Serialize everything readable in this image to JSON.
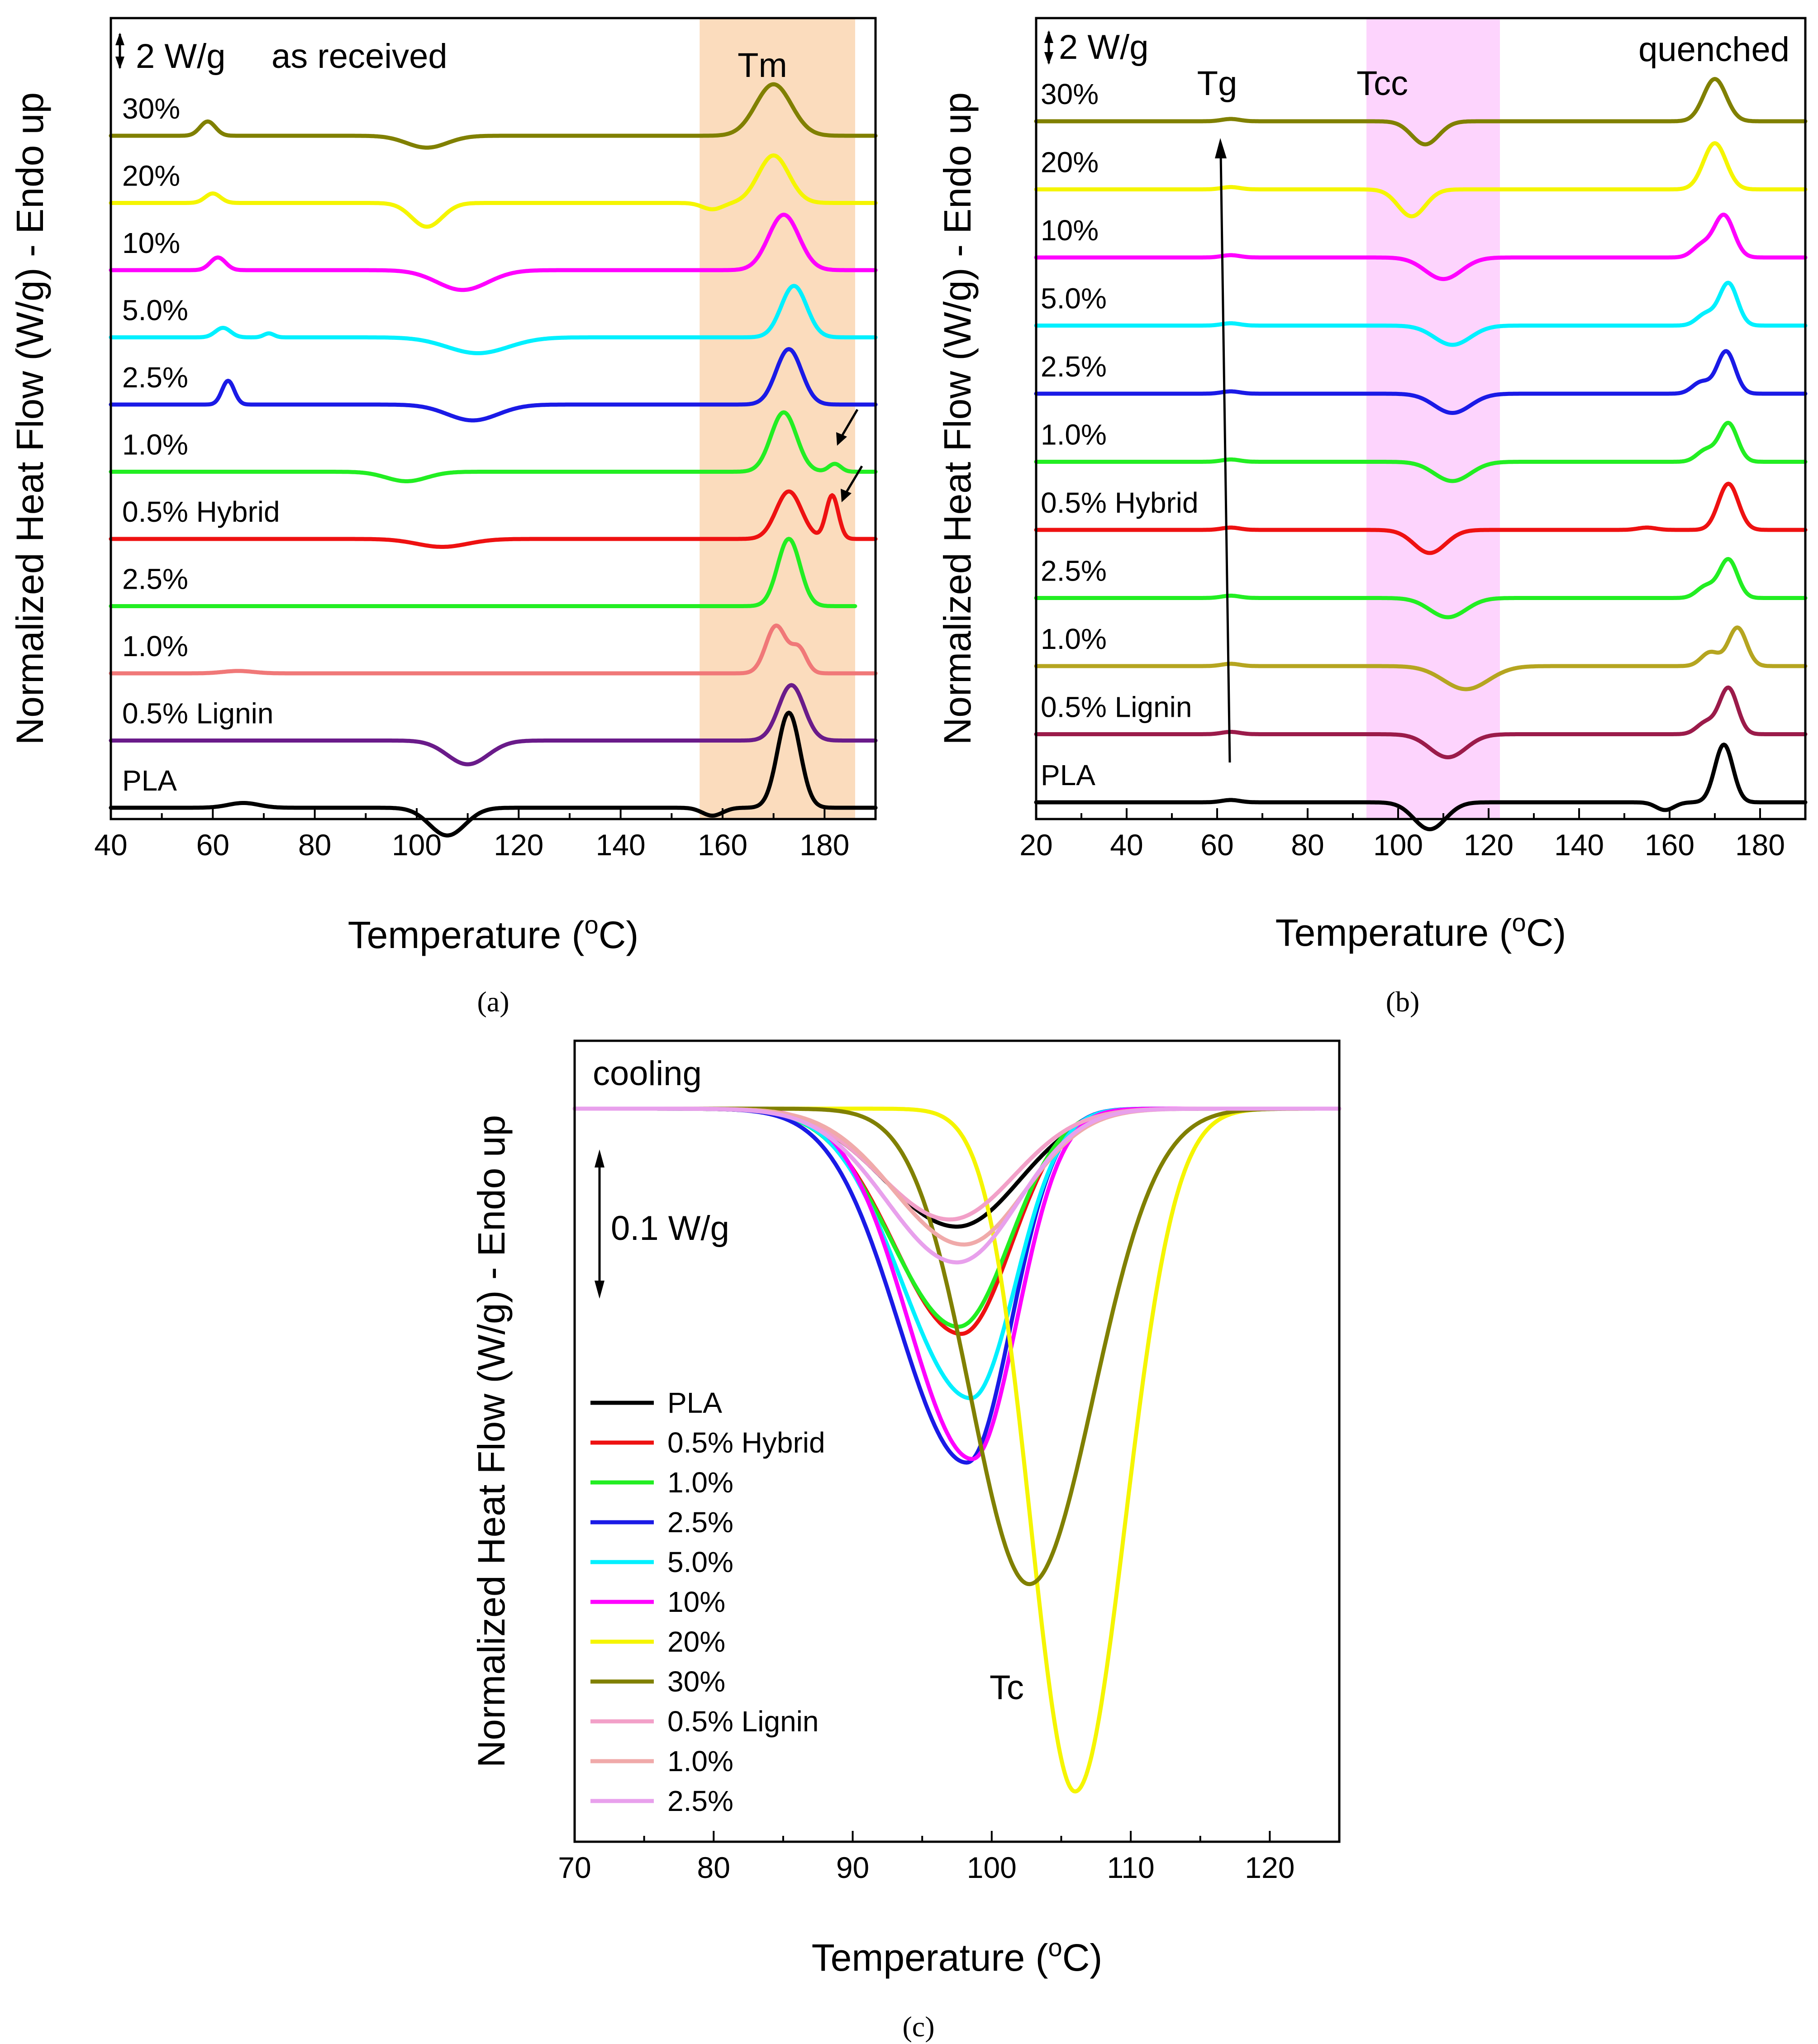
{
  "chart_data": [
    {
      "id": "a",
      "type": "line",
      "caption": "(a)",
      "title": "as received",
      "scale_bar_label": "2 W/g",
      "xlabel": "Temperature (",
      "xlabel_sup": "o",
      "xlabel_tail": "C)",
      "ylabel": "Normalized Heat Flow (W/g) - Endo up",
      "xlim": [
        40,
        190
      ],
      "xticks": [
        "40",
        "60",
        "80",
        "100",
        "120",
        "140",
        "160",
        "180"
      ],
      "highlight": {
        "label": "Tm",
        "range": [
          155.5,
          186
        ],
        "color": "#fbdcbd"
      },
      "series": [
        {
          "label": "30%",
          "color": "#808000",
          "baseline": 0,
          "features": [
            [
              59,
              0.18,
              1.5
            ],
            [
              102,
              -0.15,
              4
            ],
            [
              170,
              0.65,
              3.5
            ]
          ],
          "end": 190
        },
        {
          "label": "20%",
          "color": "#f5f500",
          "baseline": 1,
          "features": [
            [
              60,
              0.12,
              1.5
            ],
            [
              102,
              -0.3,
              3
            ],
            [
              170,
              0.6,
              3
            ],
            [
              158,
              -0.08,
              2
            ]
          ],
          "end": 190
        },
        {
          "label": "10%",
          "color": "#ff00ff",
          "baseline": 2,
          "features": [
            [
              61,
              0.16,
              1.5
            ],
            [
              109,
              -0.25,
              5
            ],
            [
              172,
              0.7,
              3
            ]
          ],
          "end": 190
        },
        {
          "label": "5.0%",
          "color": "#00f0ff",
          "baseline": 3,
          "features": [
            [
              62,
              0.12,
              1.5
            ],
            [
              71,
              0.05,
              1
            ],
            [
              112,
              -0.2,
              6
            ],
            [
              174,
              0.65,
              2.5
            ]
          ],
          "end": 190
        },
        {
          "label": "2.5%",
          "color": "#1a1ae6",
          "baseline": 4,
          "features": [
            [
              63,
              0.3,
              1.2
            ],
            [
              111,
              -0.2,
              5
            ],
            [
              173,
              0.7,
              2.5
            ]
          ],
          "end": 190
        },
        {
          "label": "1.0%",
          "color": "#22ee22",
          "baseline": 5,
          "features": [
            [
              98,
              -0.12,
              4
            ],
            [
              172,
              0.75,
              2.5
            ],
            [
              182,
              0.1,
              1.2
            ]
          ],
          "end": 190
        },
        {
          "label": "0.5% Hybrid",
          "color": "#ee1111",
          "baseline": 6,
          "features": [
            [
              105,
              -0.1,
              5
            ],
            [
              173,
              0.6,
              2.5
            ],
            [
              181.5,
              0.55,
              1.2
            ]
          ],
          "end": 190
        },
        {
          "label": "2.5%",
          "color": "#22ee22",
          "baseline": 7,
          "features": [
            [
              173,
              0.85,
              2.2
            ]
          ],
          "end": 186
        },
        {
          "label": "1.0%",
          "color": "#f07878",
          "baseline": 8,
          "features": [
            [
              65,
              0.03,
              3
            ],
            [
              170.5,
              0.6,
              2
            ],
            [
              175,
              0.3,
              1.5
            ]
          ],
          "end": 190
        },
        {
          "label": "0.5% Lignin",
          "color": "#6a1b8a",
          "baseline": 9,
          "features": [
            [
              110,
              -0.3,
              4
            ],
            [
              173.5,
              0.7,
              2.5
            ]
          ],
          "end": 190
        },
        {
          "label": "PLA",
          "color": "#000000",
          "baseline": 10,
          "features": [
            [
              66,
              0.06,
              3
            ],
            [
              106,
              -0.35,
              3.5
            ],
            [
              158,
              -0.1,
              2
            ],
            [
              173,
              1.2,
              2.2
            ]
          ],
          "end": 190
        }
      ],
      "arrows": 2
    },
    {
      "id": "b",
      "type": "line",
      "caption": "(b)",
      "title": "quenched",
      "scale_bar_label": "2 W/g",
      "xlabel": "Temperature (",
      "xlabel_sup": "o",
      "xlabel_tail": "C)",
      "ylabel": "Normalized Heat Flow (W/g) - Endo up",
      "xlim": [
        20,
        190
      ],
      "xticks": [
        "20",
        "40",
        "60",
        "80",
        "100",
        "120",
        "140",
        "160",
        "180"
      ],
      "highlight": {
        "label": "Tcc",
        "range": [
          93,
          122.5
        ],
        "color": "#fdd4fd"
      },
      "tg_label": "Tg",
      "series": [
        {
          "label": "30%",
          "color": "#808000",
          "baseline": 0,
          "features": [
            [
              63,
              0.03,
              2
            ],
            [
              106,
              -0.3,
              3
            ],
            [
              170,
              0.55,
              2.5
            ]
          ],
          "end": 190
        },
        {
          "label": "20%",
          "color": "#f5f500",
          "baseline": 1,
          "features": [
            [
              63,
              0.03,
              2
            ],
            [
              103,
              -0.35,
              3
            ],
            [
              170,
              0.6,
              2.5
            ]
          ],
          "end": 190
        },
        {
          "label": "10%",
          "color": "#ff00ff",
          "baseline": 2,
          "features": [
            [
              63,
              0.03,
              2
            ],
            [
              110,
              -0.28,
              4
            ],
            [
              167,
              0.15,
              2
            ],
            [
              172,
              0.55,
              2.2
            ]
          ],
          "end": 190
        },
        {
          "label": "5.0%",
          "color": "#00f0ff",
          "baseline": 3,
          "features": [
            [
              63,
              0.03,
              2
            ],
            [
              112,
              -0.25,
              4
            ],
            [
              168,
              0.15,
              2
            ],
            [
              173,
              0.55,
              2
            ]
          ],
          "end": 190
        },
        {
          "label": "2.5%",
          "color": "#1a1ae6",
          "baseline": 4,
          "features": [
            [
              63,
              0.03,
              2
            ],
            [
              112,
              -0.25,
              4
            ],
            [
              167,
              0.15,
              2
            ],
            [
              172.5,
              0.55,
              2
            ]
          ],
          "end": 190
        },
        {
          "label": "1.0%",
          "color": "#22ee22",
          "baseline": 5,
          "features": [
            [
              63,
              0.03,
              2
            ],
            [
              112,
              -0.25,
              4
            ],
            [
              168,
              0.15,
              2
            ],
            [
              173,
              0.5,
              2
            ]
          ],
          "end": 190
        },
        {
          "label": "0.5% Hybrid",
          "color": "#ee1111",
          "baseline": 6,
          "features": [
            [
              63,
              0.03,
              2
            ],
            [
              107,
              -0.3,
              3.5
            ],
            [
              155,
              0.03,
              2
            ],
            [
              173,
              0.6,
              2.2
            ]
          ],
          "end": 190
        },
        {
          "label": "2.5%",
          "color": "#22ee22",
          "baseline": 7,
          "features": [
            [
              63,
              0.03,
              2
            ],
            [
              111,
              -0.25,
              4
            ],
            [
              168,
              0.15,
              2
            ],
            [
              173,
              0.5,
              2
            ]
          ],
          "end": 190
        },
        {
          "label": "1.0%",
          "color": "#b5a520",
          "baseline": 8,
          "features": [
            [
              63,
              0.03,
              2
            ],
            [
              115,
              -0.3,
              5
            ],
            [
              169,
              0.18,
              2
            ],
            [
              175,
              0.5,
              2
            ]
          ],
          "end": 190
        },
        {
          "label": "0.5% Lignin",
          "color": "#9b1b4a",
          "baseline": 9,
          "features": [
            [
              63,
              0.03,
              2
            ],
            [
              111,
              -0.3,
              4
            ],
            [
              168,
              0.15,
              2
            ],
            [
              173,
              0.6,
              2
            ]
          ],
          "end": 190
        },
        {
          "label": "PLA",
          "color": "#000000",
          "baseline": 10,
          "features": [
            [
              63,
              0.03,
              2
            ],
            [
              107,
              -0.35,
              3.5
            ],
            [
              159,
              -0.1,
              2
            ],
            [
              172,
              0.75,
              2
            ]
          ],
          "end": 190
        }
      ]
    },
    {
      "id": "c",
      "type": "line",
      "caption": "(c)",
      "title": "cooling",
      "scale_bar_label": "0.1 W/g",
      "peak_label": "Tc",
      "xlabel": "Temperature (",
      "xlabel_sup": "o",
      "xlabel_tail": "C)",
      "ylabel": "Normalized Heat Flow (W/g) - Endo up",
      "xlim": [
        70,
        125
      ],
      "xticks": [
        "70",
        "80",
        "90",
        "100",
        "110",
        "120"
      ],
      "series": [
        {
          "label": "PLA",
          "color": "#000000",
          "peak": 97.5,
          "depth": 0.165,
          "width_left": 5.2,
          "width_right": 4.5
        },
        {
          "label": "0.5% Hybrid",
          "color": "#ee1111",
          "peak": 97.8,
          "depth": 0.315,
          "width_left": 4.8,
          "width_right": 3.6
        },
        {
          "label": "1.0%",
          "color": "#22ee22",
          "peak": 97.6,
          "depth": 0.305,
          "width_left": 4.8,
          "width_right": 3.7
        },
        {
          "label": "2.5%",
          "color": "#1a1ae6",
          "peak": 98.2,
          "depth": 0.495,
          "width_left": 4.9,
          "width_right": 3.2
        },
        {
          "label": "5.0%",
          "color": "#00f0ff",
          "peak": 98.5,
          "depth": 0.405,
          "width_left": 4.9,
          "width_right": 3.2
        },
        {
          "label": "10%",
          "color": "#ff00ff",
          "peak": 98.6,
          "depth": 0.49,
          "width_left": 4.6,
          "width_right": 3.2
        },
        {
          "label": "20%",
          "color": "#f5f500",
          "peak": 106.0,
          "depth": 0.955,
          "width_left": 3.2,
          "width_right": 3.6
        },
        {
          "label": "30%",
          "color": "#808000",
          "peak": 102.7,
          "depth": 0.665,
          "width_left": 4.2,
          "width_right": 4.6
        },
        {
          "label": "0.5% Lignin",
          "color": "#f2a0c8",
          "peak": 97.0,
          "depth": 0.155,
          "width_left": 5.0,
          "width_right": 4.6
        },
        {
          "label": "1.0%",
          "color": "#f0aaaa",
          "peak": 98.0,
          "depth": 0.19,
          "width_left": 5.0,
          "width_right": 4.4
        },
        {
          "label": "2.5%",
          "color": "#e8a0ec",
          "peak": 97.5,
          "depth": 0.215,
          "width_left": 5.0,
          "width_right": 4.4
        }
      ]
    }
  ]
}
